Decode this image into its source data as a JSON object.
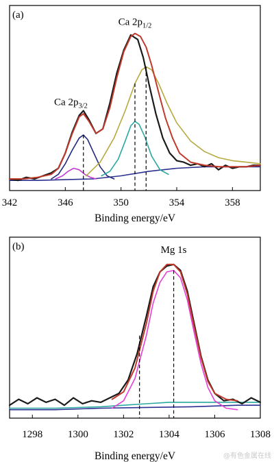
{
  "watermark": "@有色金属在线",
  "chart_data": [
    {
      "type": "line",
      "panel_label": "(a)",
      "xlabel": "Binding energy/eV",
      "ylabel": "",
      "xlim": [
        342,
        360
      ],
      "ylim": [
        0,
        1.05
      ],
      "xticks": [
        342,
        346,
        350,
        354,
        358
      ],
      "annotations": [
        {
          "main": "Ca 2p",
          "sub": "3/2",
          "x": 346.4,
          "y": 0.5
        },
        {
          "main": "Ca 2p",
          "sub": "1/2",
          "x": 351.0,
          "y": 1.03
        }
      ],
      "reference_lines": [
        347.3,
        351.0,
        351.8
      ],
      "series": [
        {
          "role": "raw",
          "color": "#1a1a1a",
          "x": [
            342.0,
            342.6,
            343.2,
            343.8,
            344.4,
            345.0,
            345.5,
            346.0,
            346.5,
            347.0,
            347.3,
            347.7,
            348.2,
            348.7,
            349.2,
            349.7,
            350.2,
            350.7,
            351.2,
            351.6,
            352.0,
            352.5,
            353.0,
            353.5,
            354.0,
            354.5,
            355.0,
            355.5,
            356.0,
            356.5,
            357.0,
            357.5,
            358.0,
            358.5,
            359.0,
            359.5,
            360.0
          ],
          "y": [
            0.05,
            0.04,
            0.06,
            0.05,
            0.07,
            0.09,
            0.12,
            0.22,
            0.36,
            0.47,
            0.5,
            0.44,
            0.35,
            0.38,
            0.55,
            0.75,
            0.9,
            1.0,
            0.97,
            0.85,
            0.68,
            0.48,
            0.32,
            0.22,
            0.17,
            0.16,
            0.14,
            0.15,
            0.13,
            0.15,
            0.11,
            0.14,
            0.12,
            0.13,
            0.13,
            0.14,
            0.14
          ]
        },
        {
          "role": "envelope",
          "color": "#c0392b",
          "x": [
            342.0,
            343.0,
            344.0,
            345.0,
            345.5,
            346.0,
            346.5,
            347.0,
            347.3,
            347.7,
            348.2,
            348.7,
            349.2,
            349.7,
            350.2,
            350.7,
            351.0,
            351.4,
            351.8,
            352.2,
            352.7,
            353.2,
            353.7,
            354.2,
            355.0,
            356.0,
            357.0,
            358.0,
            359.0,
            360.0
          ],
          "y": [
            0.05,
            0.05,
            0.06,
            0.08,
            0.12,
            0.22,
            0.35,
            0.46,
            0.48,
            0.43,
            0.35,
            0.38,
            0.52,
            0.72,
            0.89,
            0.99,
            1.01,
            0.99,
            0.92,
            0.8,
            0.62,
            0.45,
            0.32,
            0.22,
            0.16,
            0.14,
            0.13,
            0.13,
            0.13,
            0.14
          ]
        },
        {
          "role": "component",
          "color": "#1f2a7a",
          "x": [
            345.0,
            345.5,
            346.0,
            346.5,
            347.0,
            347.3,
            347.6,
            348.0,
            348.5,
            349.0,
            349.5
          ],
          "y": [
            0.05,
            0.08,
            0.15,
            0.24,
            0.32,
            0.34,
            0.31,
            0.23,
            0.13,
            0.07,
            0.05
          ]
        },
        {
          "role": "component",
          "color": "#c23bd1",
          "x": [
            345.3,
            345.8,
            346.2,
            346.6,
            347.0,
            347.4,
            347.8,
            348.2
          ],
          "y": [
            0.05,
            0.07,
            0.1,
            0.12,
            0.11,
            0.08,
            0.06,
            0.05
          ]
        },
        {
          "role": "component",
          "color": "#2aa7a1",
          "x": [
            348.6,
            349.2,
            349.8,
            350.3,
            350.7,
            351.0,
            351.3,
            351.7,
            352.2,
            352.8,
            353.4
          ],
          "y": [
            0.07,
            0.1,
            0.18,
            0.3,
            0.4,
            0.43,
            0.41,
            0.33,
            0.2,
            0.11,
            0.08
          ]
        },
        {
          "role": "component",
          "color": "#b5a93d",
          "x": [
            347.5,
            348.5,
            349.5,
            350.3,
            351.0,
            351.5,
            351.8,
            352.2,
            352.7,
            353.3,
            354.0,
            355.0,
            356.0,
            357.0,
            358.0,
            359.0,
            360.0
          ],
          "y": [
            0.07,
            0.16,
            0.32,
            0.5,
            0.68,
            0.77,
            0.79,
            0.77,
            0.68,
            0.55,
            0.42,
            0.3,
            0.23,
            0.19,
            0.17,
            0.16,
            0.15
          ]
        },
        {
          "role": "background",
          "color": "#2b2f8f",
          "x": [
            342.0,
            344.0,
            346.0,
            348.0,
            350.0,
            352.0,
            354.0,
            356.0,
            358.0,
            360.0
          ],
          "y": [
            0.04,
            0.04,
            0.045,
            0.05,
            0.07,
            0.1,
            0.12,
            0.13,
            0.13,
            0.13
          ]
        }
      ]
    },
    {
      "type": "line",
      "panel_label": "(b)",
      "xlabel": "Binding energy/eV",
      "ylabel": "",
      "xlim": [
        1297,
        1308
      ],
      "ylim": [
        0,
        1.05
      ],
      "xticks": [
        1298,
        1300,
        1302,
        1304,
        1306,
        1308
      ],
      "annotations": [
        {
          "main": "Mg 1s",
          "sub": "",
          "x": 1304.2,
          "y": 1.04
        }
      ],
      "reference_lines": [
        1302.7,
        1304.2
      ],
      "series": [
        {
          "role": "raw",
          "color": "#1a1a1a",
          "x": [
            1297.0,
            1297.4,
            1297.8,
            1298.2,
            1298.6,
            1299.0,
            1299.4,
            1299.8,
            1300.2,
            1300.6,
            1301.0,
            1301.4,
            1301.8,
            1302.2,
            1302.6,
            1303.0,
            1303.3,
            1303.6,
            1303.9,
            1304.2,
            1304.5,
            1304.8,
            1305.1,
            1305.4,
            1305.7,
            1306.0,
            1306.4,
            1306.8,
            1307.2,
            1307.6,
            1308.0
          ],
          "y": [
            0.05,
            0.09,
            0.06,
            0.1,
            0.07,
            0.09,
            0.05,
            0.1,
            0.06,
            0.08,
            0.07,
            0.1,
            0.13,
            0.22,
            0.4,
            0.65,
            0.85,
            0.95,
            0.99,
            1.0,
            0.96,
            0.82,
            0.6,
            0.38,
            0.22,
            0.13,
            0.08,
            0.09,
            0.06,
            0.1,
            0.07
          ]
        },
        {
          "role": "envelope",
          "color": "#c0392b",
          "x": [
            1301.5,
            1302.0,
            1302.5,
            1303.0,
            1303.3,
            1303.6,
            1303.9,
            1304.2,
            1304.5,
            1304.8,
            1305.1,
            1305.4,
            1305.7,
            1306.0,
            1306.5,
            1307.0
          ],
          "y": [
            0.09,
            0.14,
            0.3,
            0.6,
            0.82,
            0.95,
            1.0,
            1.0,
            0.95,
            0.8,
            0.58,
            0.37,
            0.21,
            0.13,
            0.09,
            0.08
          ]
        },
        {
          "role": "component",
          "color": "#e23fd8",
          "x": [
            1301.5,
            1302.0,
            1302.5,
            1303.0,
            1303.3,
            1303.6,
            1303.9,
            1304.2,
            1304.5,
            1304.8,
            1305.1,
            1305.4,
            1305.7,
            1306.0,
            1306.5,
            1307.0
          ],
          "y": [
            0.03,
            0.08,
            0.23,
            0.52,
            0.74,
            0.88,
            0.95,
            0.96,
            0.91,
            0.76,
            0.54,
            0.33,
            0.17,
            0.08,
            0.03,
            0.02
          ]
        },
        {
          "role": "background",
          "color": "#2aa7a1",
          "x": [
            1297.0,
            1299.0,
            1301.0,
            1302.0,
            1303.0,
            1304.0,
            1305.0,
            1306.0,
            1307.0,
            1308.0
          ],
          "y": [
            0.03,
            0.03,
            0.04,
            0.05,
            0.06,
            0.07,
            0.07,
            0.07,
            0.07,
            0.07
          ]
        },
        {
          "role": "background",
          "color": "#2b2f8f",
          "x": [
            1297.0,
            1299.0,
            1301.0,
            1303.0,
            1305.0,
            1307.0,
            1308.0
          ],
          "y": [
            0.02,
            0.02,
            0.03,
            0.035,
            0.04,
            0.05,
            0.05
          ]
        }
      ]
    }
  ]
}
